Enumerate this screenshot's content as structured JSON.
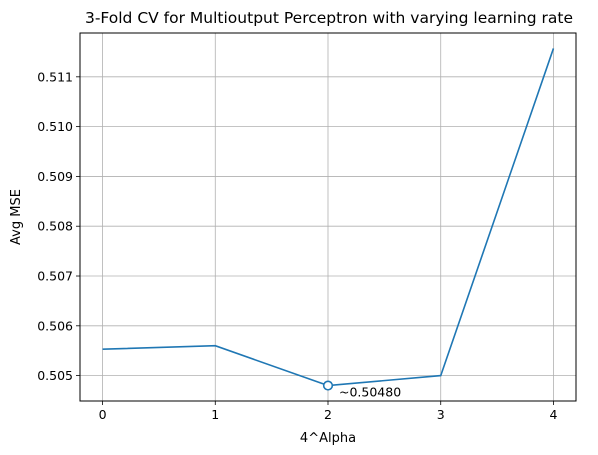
{
  "chart_data": {
    "type": "line",
    "title": "3-Fold CV for Multioutput Perceptron with varying learning rate",
    "xlabel": "4^Alpha",
    "ylabel": "Avg MSE",
    "x": [
      0,
      1,
      2,
      3,
      4
    ],
    "y": [
      0.50553,
      0.5056,
      0.5048,
      0.505,
      0.51157
    ],
    "xlim": [
      -0.2,
      4.2
    ],
    "ylim": [
      0.50449,
      0.51188
    ],
    "xticks": [
      "0",
      "1",
      "2",
      "3",
      "4"
    ],
    "yticks": [
      "0.505",
      "0.506",
      "0.507",
      "0.508",
      "0.509",
      "0.510",
      "0.511"
    ],
    "grid": true,
    "line_color": "#1f77b4",
    "highlight": {
      "x": 2,
      "y": 0.5048,
      "label": "~0.50480"
    }
  }
}
